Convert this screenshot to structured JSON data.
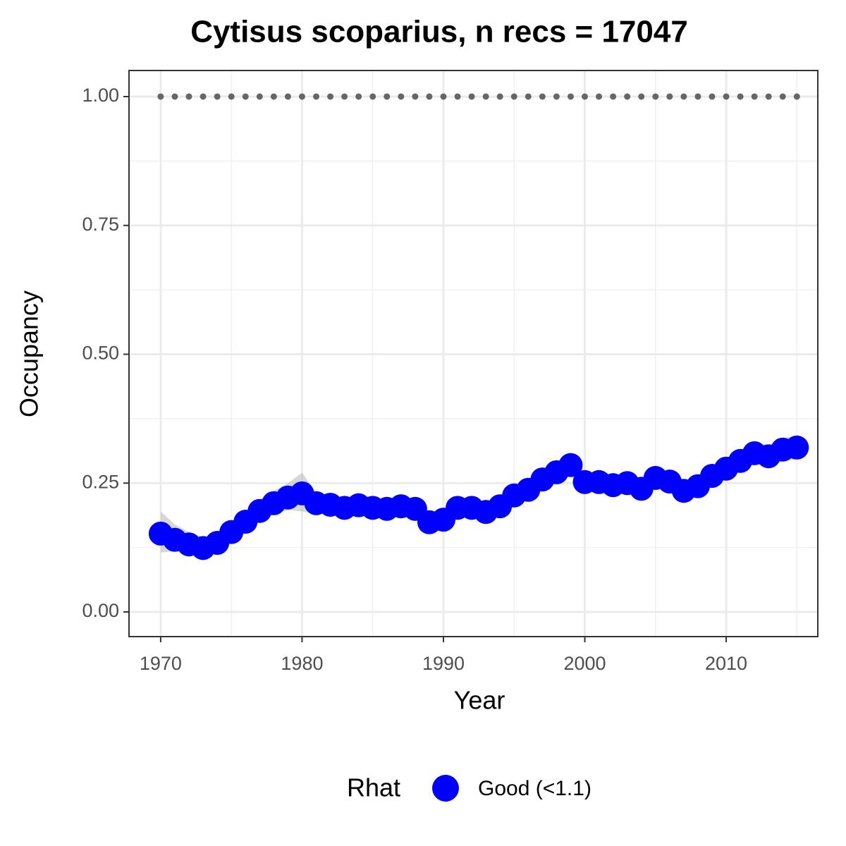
{
  "chart_data": {
    "type": "line",
    "title": "Cytisus scoparius, n recs = 17047",
    "x_label": "Year",
    "y_label": "Occupancy",
    "x": [
      1970,
      1971,
      1972,
      1973,
      1974,
      1975,
      1976,
      1977,
      1978,
      1979,
      1980,
      1981,
      1982,
      1983,
      1984,
      1985,
      1986,
      1987,
      1988,
      1989,
      1990,
      1991,
      1992,
      1993,
      1994,
      1995,
      1996,
      1997,
      1998,
      1999,
      2000,
      2001,
      2002,
      2003,
      2004,
      2005,
      2006,
      2007,
      2008,
      2009,
      2010,
      2011,
      2012,
      2013,
      2014,
      2015
    ],
    "series": [
      {
        "name": "Good (<1.1)",
        "color": "#0000ff",
        "values": [
          0.152,
          0.14,
          0.131,
          0.124,
          0.134,
          0.155,
          0.175,
          0.196,
          0.211,
          0.222,
          0.23,
          0.211,
          0.208,
          0.202,
          0.207,
          0.202,
          0.2,
          0.205,
          0.2,
          0.174,
          0.179,
          0.202,
          0.202,
          0.194,
          0.205,
          0.226,
          0.237,
          0.257,
          0.271,
          0.285,
          0.252,
          0.252,
          0.246,
          0.25,
          0.239,
          0.26,
          0.253,
          0.235,
          0.244,
          0.264,
          0.278,
          0.293,
          0.308,
          0.302,
          0.315,
          0.319
        ],
        "lower": [
          0.115,
          0.118,
          0.115,
          0.11,
          0.118,
          0.138,
          0.158,
          0.178,
          0.19,
          0.198,
          0.195,
          0.192,
          0.192,
          0.186,
          0.19,
          0.186,
          0.184,
          0.188,
          0.182,
          0.158,
          0.163,
          0.186,
          0.186,
          0.178,
          0.188,
          0.208,
          0.219,
          0.238,
          0.252,
          0.264,
          0.235,
          0.235,
          0.229,
          0.232,
          0.221,
          0.242,
          0.235,
          0.217,
          0.226,
          0.245,
          0.259,
          0.273,
          0.287,
          0.282,
          0.294,
          0.296
        ],
        "upper": [
          0.195,
          0.17,
          0.155,
          0.145,
          0.152,
          0.172,
          0.194,
          0.218,
          0.235,
          0.25,
          0.27,
          0.232,
          0.226,
          0.22,
          0.225,
          0.22,
          0.218,
          0.223,
          0.218,
          0.192,
          0.196,
          0.22,
          0.22,
          0.212,
          0.223,
          0.245,
          0.256,
          0.277,
          0.291,
          0.307,
          0.27,
          0.27,
          0.264,
          0.268,
          0.257,
          0.279,
          0.272,
          0.254,
          0.263,
          0.284,
          0.298,
          0.314,
          0.33,
          0.323,
          0.337,
          0.343
        ]
      }
    ],
    "band_color": "#bdbdbd",
    "reference_line": {
      "y": 1,
      "color": "#666666"
    },
    "legend_title": "Rhat",
    "legend_position": "bottom",
    "xlim": [
      1967.76,
      2016.48
    ],
    "xticks": [
      1970,
      1980,
      1990,
      2000,
      2010
    ],
    "minor_xticks": [
      1975,
      1985,
      1995,
      2005,
      2015
    ],
    "ylim": [
      -0.0479,
      1.0506
    ],
    "yticks": [
      {
        "value": 0,
        "label": "0.00"
      },
      {
        "value": 0.25,
        "label": "0.25"
      },
      {
        "value": 0.5,
        "label": "0.50"
      },
      {
        "value": 0.75,
        "label": "0.75"
      },
      {
        "value": 1,
        "label": "1.00"
      }
    ],
    "minor_yticks": [
      0.125,
      0.375,
      0.625,
      0.875
    ],
    "grid": true
  }
}
